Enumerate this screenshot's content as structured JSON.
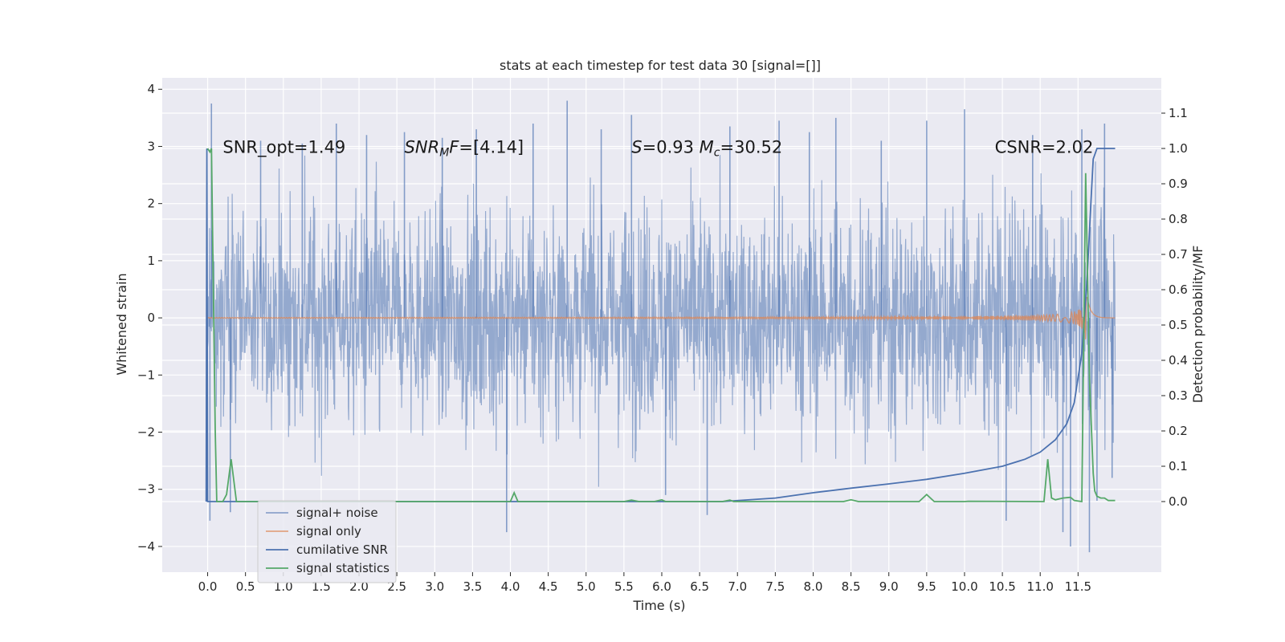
{
  "chart_data": {
    "type": "line",
    "title": "stats at each timestep for test data 30 [signal=[]]",
    "xlabel": "Time (s)",
    "ylabel_left": "Whitened strain",
    "ylabel_right": "Detection probability/MF",
    "xlim": [
      -0.6,
      12.6
    ],
    "ylim_left": [
      -4.45,
      4.2
    ],
    "ylim_right": [
      -0.2,
      1.2
    ],
    "xticks": [
      "0.0",
      "0.5",
      "1.0",
      "1.5",
      "2.0",
      "2.5",
      "3.0",
      "3.5",
      "4.0",
      "4.5",
      "5.0",
      "5.5",
      "6.0",
      "6.5",
      "7.0",
      "7.5",
      "8.0",
      "8.5",
      "9.0",
      "9.5",
      "10.0",
      "10.5",
      "11.0",
      "11.5"
    ],
    "xtick_values": [
      0.0,
      0.5,
      1.0,
      1.5,
      2.0,
      2.5,
      3.0,
      3.5,
      4.0,
      4.5,
      5.0,
      5.5,
      6.0,
      6.5,
      7.0,
      7.5,
      8.0,
      8.5,
      9.0,
      9.5,
      10.0,
      10.5,
      11.0,
      11.5
    ],
    "yticks_left": [
      "−4",
      "−3",
      "−2",
      "−1",
      "0",
      "1",
      "2",
      "3",
      "4"
    ],
    "ytick_values_left": [
      -4,
      -3,
      -2,
      -1,
      0,
      1,
      2,
      3,
      4
    ],
    "yticks_right": [
      "0.0",
      "0.1",
      "0.2",
      "0.3",
      "0.4",
      "0.5",
      "0.6",
      "0.7",
      "0.8",
      "0.9",
      "1.0",
      "1.1"
    ],
    "ytick_values_right": [
      0.0,
      0.1,
      0.2,
      0.3,
      0.4,
      0.5,
      0.6,
      0.7,
      0.8,
      0.9,
      1.0,
      1.1
    ],
    "grid": true,
    "legend_position": "bottom-left",
    "annotations": [
      {
        "text_plain": "SNR_opt=1.49",
        "x_data": 0.2,
        "y_left": 3.0
      },
      {
        "text_parts": [
          {
            "t": "SNR",
            "i": true
          },
          {
            "t": "M",
            "i": true,
            "sub": true
          },
          {
            "t": "F",
            "i": true
          },
          {
            "t": "=[4.14]",
            "i": false
          }
        ],
        "x_data": 2.6,
        "y_left": 3.0
      },
      {
        "text_parts": [
          {
            "t": "S",
            "i": true
          },
          {
            "t": "=0.93   ",
            "i": false
          },
          {
            "t": "M",
            "i": true
          },
          {
            "t": "c",
            "i": true,
            "sub": true
          },
          {
            "t": "=30.52",
            "i": false
          }
        ],
        "x_data": 5.6,
        "y_left": 3.0
      },
      {
        "text_plain": "CSNR=2.02",
        "x_data": 10.4,
        "y_left": 3.0
      }
    ],
    "series": [
      {
        "name": "signal+ noise",
        "axis": "left",
        "style": "noise-band",
        "color": "#4c72b0",
        "opacity": 0.55,
        "x_range": [
          0.0,
          11.99
        ],
        "core_amplitude": 1.9,
        "spikes": [
          {
            "x": 0.05,
            "y": 3.75
          },
          {
            "x": 0.03,
            "y": -3.55
          },
          {
            "x": 0.3,
            "y": -3.4
          },
          {
            "x": 0.7,
            "y": 3.1
          },
          {
            "x": 1.25,
            "y": 3.05
          },
          {
            "x": 1.7,
            "y": 3.4
          },
          {
            "x": 2.1,
            "y": 3.2
          },
          {
            "x": 2.6,
            "y": 3.25
          },
          {
            "x": 3.1,
            "y": 3.15
          },
          {
            "x": 3.55,
            "y": 3.3
          },
          {
            "x": 3.95,
            "y": -3.75
          },
          {
            "x": 4.3,
            "y": 3.4
          },
          {
            "x": 4.75,
            "y": 3.8
          },
          {
            "x": 5.2,
            "y": 3.3
          },
          {
            "x": 5.6,
            "y": 3.55
          },
          {
            "x": 6.05,
            "y": -3.1
          },
          {
            "x": 6.6,
            "y": -3.45
          },
          {
            "x": 6.9,
            "y": 3.35
          },
          {
            "x": 7.55,
            "y": 3.45
          },
          {
            "x": 7.95,
            "y": 3.25
          },
          {
            "x": 8.3,
            "y": 3.5
          },
          {
            "x": 8.9,
            "y": 3.1
          },
          {
            "x": 9.5,
            "y": 3.45
          },
          {
            "x": 10.0,
            "y": 3.65
          },
          {
            "x": 10.55,
            "y": -3.55
          },
          {
            "x": 10.9,
            "y": 3.2
          },
          {
            "x": 11.3,
            "y": -3.75
          },
          {
            "x": 11.4,
            "y": -4.0
          },
          {
            "x": 11.55,
            "y": 3.3
          },
          {
            "x": 11.65,
            "y": -4.1
          },
          {
            "x": 11.85,
            "y": 3.4
          },
          {
            "x": 11.75,
            "y": -3.2
          },
          {
            "x": 11.95,
            "y": -2.8
          }
        ]
      },
      {
        "name": "signal only",
        "axis": "left",
        "style": "chirp",
        "color": "#dd8452",
        "x_range": [
          0.0,
          11.99
        ],
        "peak_x": 11.62,
        "peak_amplitude": 0.4
      },
      {
        "name": "cumilative SNR",
        "axis": "right",
        "style": "line",
        "color": "#4c72b0",
        "x": [
          -0.02,
          -0.01,
          0.0,
          6.8,
          7.5,
          8.0,
          8.5,
          9.0,
          9.5,
          10.0,
          10.5,
          10.8,
          11.0,
          11.2,
          11.35,
          11.45,
          11.55,
          11.62,
          11.67,
          11.7,
          11.75,
          11.99
        ],
        "y": [
          0.0,
          1.0,
          0.0,
          0.0,
          0.01,
          0.025,
          0.038,
          0.05,
          0.063,
          0.08,
          0.1,
          0.12,
          0.14,
          0.175,
          0.22,
          0.28,
          0.42,
          0.63,
          0.85,
          0.97,
          1.0,
          1.0
        ]
      },
      {
        "name": "signal statistics",
        "axis": "right",
        "style": "line",
        "color": "#55a868",
        "x": [
          0.0,
          0.03,
          0.05,
          0.1,
          0.12,
          0.2,
          0.25,
          0.31,
          0.38,
          0.5,
          4.0,
          4.05,
          4.1,
          4.2,
          5.5,
          5.6,
          5.7,
          5.9,
          6.0,
          6.05,
          6.1,
          6.8,
          6.9,
          6.95,
          8.4,
          8.5,
          8.6,
          9.4,
          9.5,
          9.6,
          10.0,
          10.05,
          11.05,
          11.1,
          11.15,
          11.2,
          11.3,
          11.4,
          11.45,
          11.55,
          11.6,
          11.65,
          11.7,
          11.72,
          11.75,
          11.8,
          11.85,
          11.9,
          11.99
        ],
        "y": [
          1.0,
          0.99,
          1.0,
          0.2,
          0.0,
          0.0,
          0.02,
          0.12,
          0.0,
          0.0,
          0.0,
          0.025,
          0.0,
          0.0,
          0.0,
          0.004,
          0.0,
          0.0,
          0.005,
          0.0,
          0.0,
          0.0,
          0.004,
          0.0,
          0.0,
          0.005,
          0.0,
          0.0,
          0.02,
          0.0,
          0.0,
          0.001,
          0.0,
          0.12,
          0.01,
          0.005,
          0.01,
          0.012,
          0.003,
          0.0,
          0.93,
          0.35,
          0.08,
          0.03,
          0.015,
          0.01,
          0.01,
          0.003,
          0.003
        ]
      }
    ]
  }
}
